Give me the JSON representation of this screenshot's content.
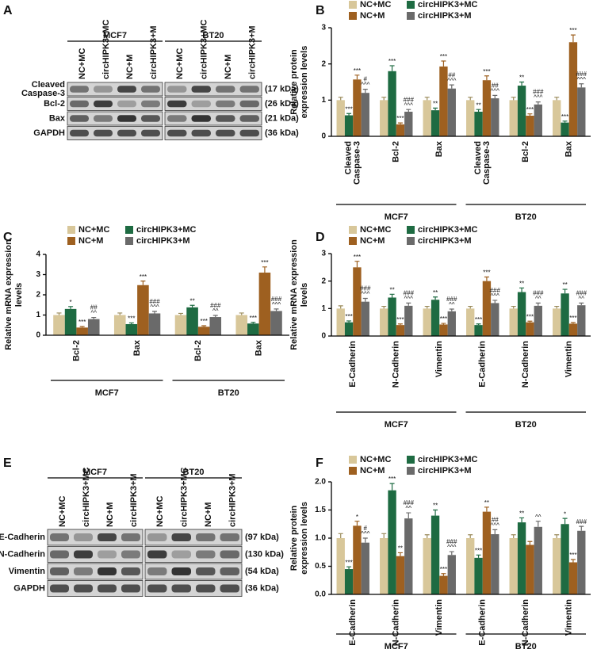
{
  "chart_data": [
    {
      "type": "bar",
      "panel_label": "B",
      "ylabel": [
        "Relative  protein",
        "expression levels"
      ],
      "categories": [
        [
          "Cleaved",
          "Caspase-3"
        ],
        [
          "Bcl-2"
        ],
        [
          "Bax"
        ],
        [
          "Cleaved",
          "Caspase-3"
        ],
        [
          "Bcl-2"
        ],
        [
          "Bax"
        ]
      ],
      "groups": [
        "MCF7",
        "BT20"
      ],
      "ylim": [
        0,
        3
      ],
      "yticks": [
        0,
        1,
        2,
        3
      ],
      "series": [
        {
          "name": "NC+MC",
          "color": "#d8c79a",
          "values": [
            1.0,
            1.0,
            1.0,
            1.0,
            1.0,
            1.0
          ],
          "errors": [
            0.08,
            0.08,
            0.08,
            0.08,
            0.08,
            0.08
          ],
          "annotations": [
            null,
            null,
            null,
            null,
            null,
            null
          ]
        },
        {
          "name": "circHIPK3+MC",
          "color": "#1e6b42",
          "values": [
            0.58,
            1.8,
            0.72,
            0.68,
            1.4,
            0.38
          ],
          "errors": [
            0.05,
            0.15,
            0.06,
            0.06,
            0.1,
            0.04
          ],
          "annotations": [
            [
              "***"
            ],
            [
              "***"
            ],
            [
              "**"
            ],
            [
              "**"
            ],
            [
              "**"
            ],
            [
              "***"
            ]
          ]
        },
        {
          "name": "NC+M",
          "color": "#9e6020",
          "values": [
            1.57,
            0.33,
            1.93,
            1.55,
            0.57,
            2.6
          ],
          "errors": [
            0.12,
            0.04,
            0.15,
            0.12,
            0.05,
            0.2
          ],
          "annotations": [
            [
              "***"
            ],
            [
              "***"
            ],
            [
              "***"
            ],
            [
              "***"
            ],
            [
              "***"
            ],
            [
              "***"
            ]
          ]
        },
        {
          "name": "circHIPK3+M",
          "color": "#6a6a6a",
          "values": [
            1.2,
            0.68,
            1.32,
            1.05,
            0.88,
            1.35
          ],
          "errors": [
            0.1,
            0.06,
            0.1,
            0.08,
            0.07,
            0.1
          ],
          "annotations": [
            [
              "#",
              "^^^"
            ],
            [
              "###",
              "^^^"
            ],
            [
              "##",
              "^^^"
            ],
            [
              "##",
              "^^^"
            ],
            [
              "###",
              "^^^"
            ],
            [
              "###",
              "^^^"
            ]
          ]
        }
      ]
    },
    {
      "type": "bar",
      "panel_label": "C",
      "ylabel": [
        "Relative mRNA expression",
        "levels"
      ],
      "categories": [
        [
          "Bcl-2"
        ],
        [
          "Bax"
        ],
        [
          "Bcl-2"
        ],
        [
          "Bax"
        ]
      ],
      "groups": [
        "MCF7",
        "BT20"
      ],
      "ylim": [
        0,
        4
      ],
      "yticks": [
        0,
        1,
        2,
        3,
        4
      ],
      "series": [
        {
          "name": "NC+MC",
          "color": "#d8c79a",
          "values": [
            1.0,
            1.0,
            1.0,
            1.0
          ],
          "errors": [
            0.1,
            0.1,
            0.08,
            0.1
          ],
          "annotations": [
            null,
            null,
            null,
            null
          ]
        },
        {
          "name": "circHIPK3+MC",
          "color": "#1e6b42",
          "values": [
            1.3,
            0.55,
            1.38,
            0.58
          ],
          "errors": [
            0.12,
            0.06,
            0.1,
            0.06
          ],
          "annotations": [
            [
              "*"
            ],
            [
              "***"
            ],
            [
              "**"
            ],
            [
              "***"
            ]
          ]
        },
        {
          "name": "NC+M",
          "color": "#9e6020",
          "values": [
            0.38,
            2.48,
            0.42,
            3.1
          ],
          "errors": [
            0.05,
            0.2,
            0.05,
            0.28
          ],
          "annotations": [
            [
              "***"
            ],
            [
              "***"
            ],
            [
              "***"
            ],
            [
              "***"
            ]
          ]
        },
        {
          "name": "circHIPK3+M",
          "color": "#6a6a6a",
          "values": [
            0.8,
            1.08,
            0.9,
            1.2
          ],
          "errors": [
            0.08,
            0.1,
            0.08,
            0.1
          ],
          "annotations": [
            [
              "##",
              "^^"
            ],
            [
              "###",
              "^^^"
            ],
            [
              "###",
              "^^"
            ],
            [
              "###",
              "^^^"
            ]
          ]
        }
      ]
    },
    {
      "type": "bar",
      "panel_label": "D",
      "ylabel": [
        "Relative mRNA expression",
        "levels"
      ],
      "categories": [
        [
          "E-Cadherin"
        ],
        [
          "N-Cadherin"
        ],
        [
          "Vimentin"
        ],
        [
          "E-Cadherin"
        ],
        [
          "N-Cadherin"
        ],
        [
          "Vimentin"
        ]
      ],
      "groups": [
        "MCF7",
        "BT20"
      ],
      "ylim": [
        0,
        3
      ],
      "yticks": [
        0,
        1,
        2,
        3
      ],
      "series": [
        {
          "name": "NC+MC",
          "color": "#d8c79a",
          "values": [
            1.0,
            1.0,
            1.0,
            1.0,
            1.0,
            1.0
          ],
          "errors": [
            0.1,
            0.08,
            0.08,
            0.08,
            0.08,
            0.08
          ],
          "annotations": [
            null,
            null,
            null,
            null,
            null,
            null
          ]
        },
        {
          "name": "circHIPK3+MC",
          "color": "#1e6b42",
          "values": [
            0.5,
            1.4,
            1.32,
            0.4,
            1.6,
            1.55
          ],
          "errors": [
            0.05,
            0.12,
            0.1,
            0.04,
            0.15,
            0.15
          ],
          "annotations": [
            [
              "***"
            ],
            [
              "**"
            ],
            [
              "**"
            ],
            [
              "***"
            ],
            [
              "**"
            ],
            [
              "**"
            ]
          ]
        },
        {
          "name": "NC+M",
          "color": "#9e6020",
          "values": [
            2.5,
            0.4,
            0.42,
            2.0,
            0.5,
            0.45
          ],
          "errors": [
            0.22,
            0.04,
            0.04,
            0.15,
            0.04,
            0.04
          ],
          "annotations": [
            [
              "***"
            ],
            [
              "***"
            ],
            [
              "***"
            ],
            [
              "***"
            ],
            [
              "***"
            ],
            [
              "***"
            ]
          ]
        },
        {
          "name": "circHIPK3+M",
          "color": "#6a6a6a",
          "values": [
            1.25,
            1.1,
            0.9,
            1.2,
            1.1,
            1.12
          ],
          "errors": [
            0.12,
            0.1,
            0.08,
            0.1,
            0.1,
            0.08
          ],
          "annotations": [
            [
              "###",
              "^^^"
            ],
            [
              "###",
              "^^^"
            ],
            [
              "###",
              "^^"
            ],
            [
              "###",
              "^^^"
            ],
            [
              "###",
              "^^"
            ],
            [
              "###",
              "^^"
            ]
          ]
        }
      ]
    },
    {
      "type": "bar",
      "panel_label": "F",
      "ylabel": [
        "Relative  protein",
        "expression levels"
      ],
      "categories": [
        [
          "E-Cadherin"
        ],
        [
          "N-Cadherin"
        ],
        [
          "Vimentin"
        ],
        [
          "E-Cadherin"
        ],
        [
          "N-Cadherin"
        ],
        [
          "Vimentin"
        ]
      ],
      "groups": [
        "MCF7",
        "BT20"
      ],
      "ylim": [
        0,
        2
      ],
      "yticks": [
        {
          "value": 0,
          "label": "0.0"
        },
        0.5,
        {
          "value": 1,
          "label": "1.0"
        },
        1.5,
        {
          "value": 2,
          "label": "2.0"
        }
      ],
      "series": [
        {
          "name": "NC+MC",
          "color": "#d8c79a",
          "values": [
            1.0,
            1.0,
            1.0,
            1.0,
            1.0,
            1.0
          ],
          "errors": [
            0.08,
            0.08,
            0.06,
            0.06,
            0.06,
            0.06
          ],
          "annotations": [
            null,
            null,
            null,
            null,
            null,
            null
          ]
        },
        {
          "name": "circHIPK3+MC",
          "color": "#1e6b42",
          "values": [
            0.45,
            1.85,
            1.4,
            0.65,
            1.28,
            1.25
          ],
          "errors": [
            0.04,
            0.12,
            0.1,
            0.05,
            0.08,
            0.1
          ],
          "annotations": [
            [
              "***"
            ],
            [
              "***"
            ],
            [
              "**"
            ],
            [
              "***"
            ],
            [
              "**"
            ],
            [
              "*"
            ]
          ]
        },
        {
          "name": "NC+M",
          "color": "#9e6020",
          "values": [
            1.22,
            0.68,
            0.33,
            1.47,
            0.88,
            0.57
          ],
          "errors": [
            0.08,
            0.06,
            0.04,
            0.08,
            0.06,
            0.05
          ],
          "annotations": [
            [
              "*"
            ],
            [
              "**"
            ],
            [
              "***"
            ],
            [
              "**"
            ],
            null,
            [
              "***"
            ]
          ]
        },
        {
          "name": "circHIPK3+M",
          "color": "#6a6a6a",
          "values": [
            0.92,
            1.35,
            0.7,
            1.07,
            1.2,
            1.13
          ],
          "errors": [
            0.08,
            0.1,
            0.06,
            0.08,
            0.1,
            0.08
          ],
          "annotations": [
            [
              "#",
              "^^^"
            ],
            [
              "###",
              "^^"
            ],
            [
              "###",
              "^^^"
            ],
            [
              "##",
              "^^^"
            ],
            [
              "^^"
            ],
            [
              "###"
            ]
          ]
        }
      ]
    }
  ],
  "blots": [
    {
      "panel_label": "A",
      "groups": [
        "MCF7",
        "BT20"
      ],
      "lanes": [
        "NC+MC",
        "circHIPK3+MC",
        "NC+M",
        "circHIPK3+M"
      ],
      "rows": [
        {
          "label": [
            "Cleaved",
            "Caspase-3"
          ],
          "size": "(17 kDa)"
        },
        {
          "label": [
            "Bcl-2"
          ],
          "size": "(26 kDa)"
        },
        {
          "label": [
            "Bax"
          ],
          "size": "(21 kDa)"
        },
        {
          "label": [
            "GAPDH"
          ],
          "size": "(36 kDa)"
        }
      ]
    },
    {
      "panel_label": "E",
      "groups": [
        "MCF7",
        "BT20"
      ],
      "lanes": [
        "NC+MC",
        "circHIPK3+MC",
        "NC+M",
        "circHIPK3+M"
      ],
      "rows": [
        {
          "label": [
            "E-Cadherin"
          ],
          "size": "(97 kDa)"
        },
        {
          "label": [
            "N-Cadherin"
          ],
          "size": "(130 kDa)"
        },
        {
          "label": [
            "Vimentin"
          ],
          "size": "(54 kDa)"
        },
        {
          "label": [
            "GAPDH"
          ],
          "size": "(36 kDa)"
        }
      ]
    }
  ]
}
